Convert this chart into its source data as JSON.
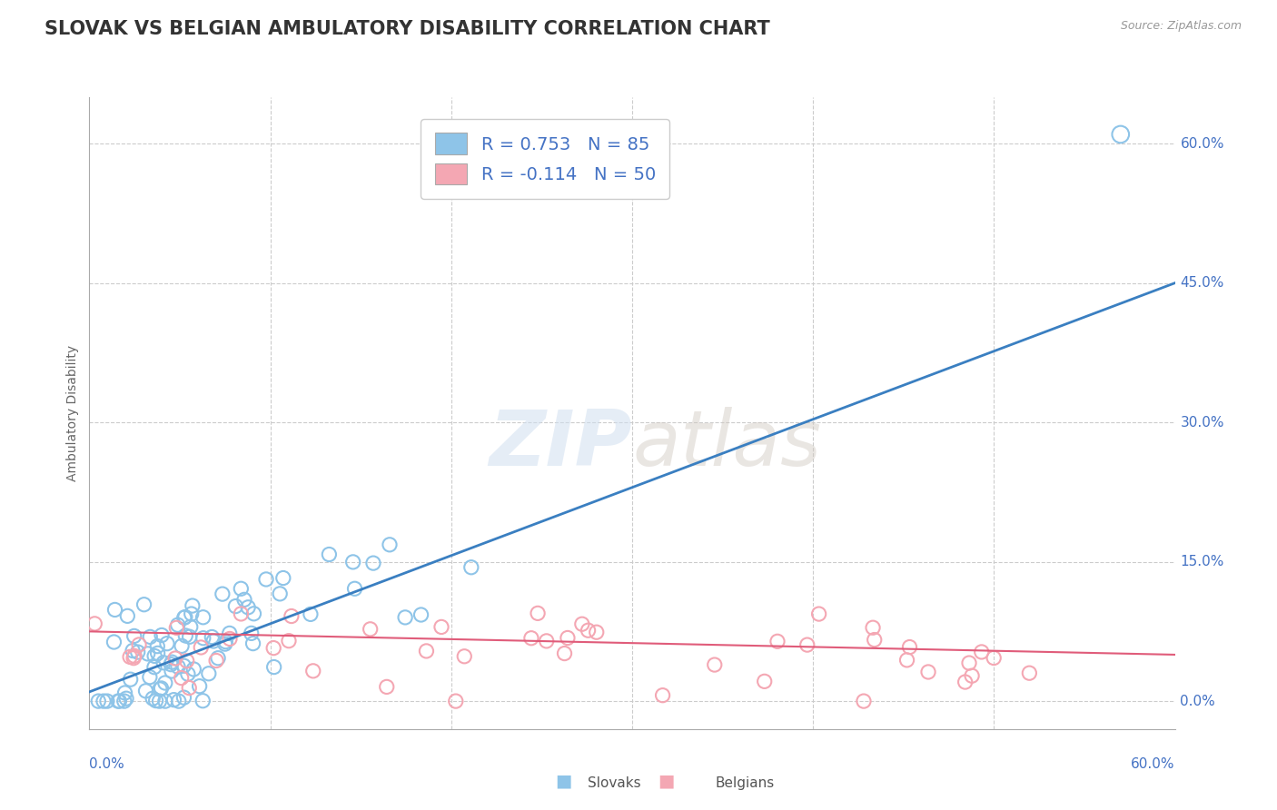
{
  "title": "SLOVAK VS BELGIAN AMBULATORY DISABILITY CORRELATION CHART",
  "source": "Source: ZipAtlas.com",
  "ylabel": "Ambulatory Disability",
  "ytick_values": [
    0.0,
    15.0,
    30.0,
    45.0,
    60.0
  ],
  "xlim": [
    0.0,
    60.0
  ],
  "ylim": [
    -3.0,
    65.0
  ],
  "legend_slovak_r": "R = 0.753",
  "legend_slovak_n": "N = 85",
  "legend_belgian_r": "R = -0.114",
  "legend_belgian_n": "N = 50",
  "slovak_color": "#8ec4e8",
  "belgian_color": "#f4a7b3",
  "slovak_line_color": "#3a7fc1",
  "belgian_line_color": "#e05c7a",
  "n_slovak": 85,
  "n_belgian": 50,
  "slovak_r": 0.753,
  "belgian_r": -0.114,
  "background_color": "#ffffff",
  "grid_color": "#cccccc",
  "title_fontsize": 15,
  "axis_label_fontsize": 10,
  "tick_fontsize": 11,
  "legend_fontsize": 14,
  "legend_color": "#4472c4",
  "tick_color": "#4472c4"
}
